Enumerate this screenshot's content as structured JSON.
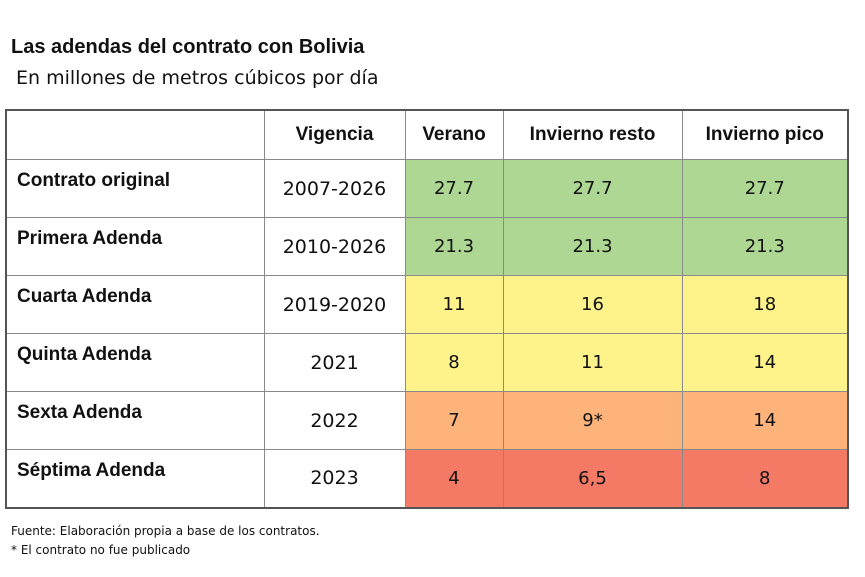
{
  "title": "Las adendas del contrato con Bolivia",
  "subtitle": "En millones de metros cúbicos por día",
  "table": {
    "headers": [
      "",
      "Vigencia",
      "Verano",
      "Invierno resto",
      "Invierno pico"
    ],
    "rows": [
      {
        "label": "Contrato original",
        "vigencia": "2007-2026",
        "verano": "27.7",
        "invierno_resto": "27.7",
        "invierno_pico": "27.7",
        "color": "#add793"
      },
      {
        "label": "Primera Adenda",
        "vigencia": "2010-2026",
        "verano": "21.3",
        "invierno_resto": "21.3",
        "invierno_pico": "21.3",
        "color": "#add793"
      },
      {
        "label": "Cuarta Adenda",
        "vigencia": "2019-2020",
        "verano": "11",
        "invierno_resto": "16",
        "invierno_pico": "18",
        "color": "#fdf38a"
      },
      {
        "label": "Quinta Adenda",
        "vigencia": "2021",
        "verano": "8",
        "invierno_resto": "11",
        "invierno_pico": "14",
        "color": "#fdf38a"
      },
      {
        "label": "Sexta Adenda",
        "vigencia": "2022",
        "verano": "7",
        "invierno_resto": "9*",
        "invierno_pico": "14",
        "color": "#fdb37a"
      },
      {
        "label": "Séptima Adenda",
        "vigencia": "2023",
        "verano": "4",
        "invierno_resto": "6,5",
        "invierno_pico": "8",
        "color": "#f47a66"
      }
    ]
  },
  "notes": {
    "source": "Fuente: Elaboración propia a base de los contratos.",
    "footnote": "* El contrato no fue publicado"
  }
}
